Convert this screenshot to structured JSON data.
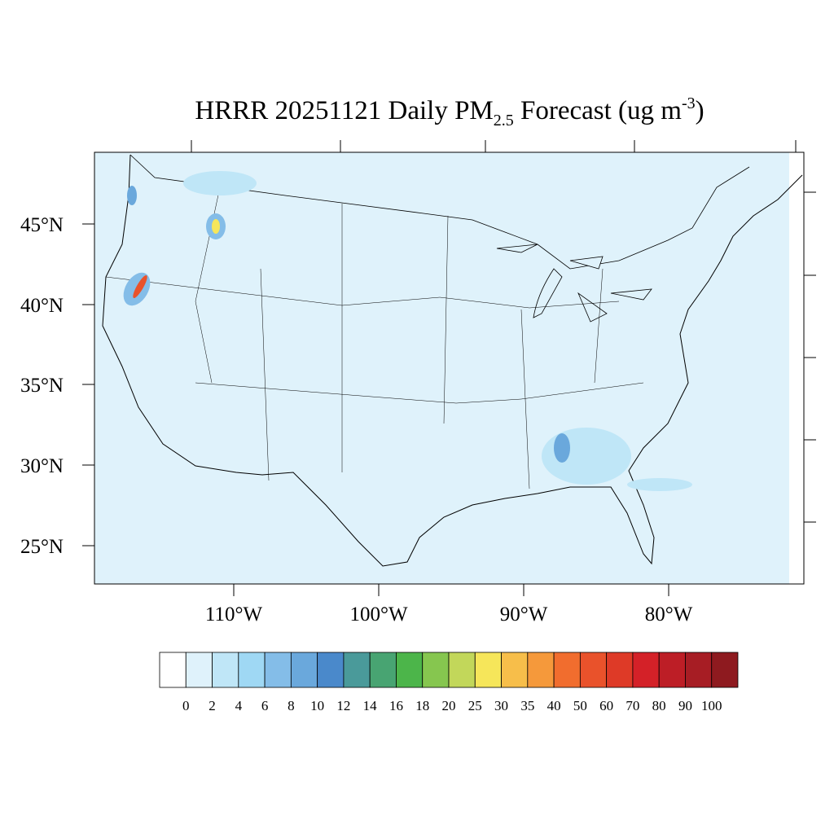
{
  "title": {
    "main": "HRRR 20251121 Daily PM",
    "sub": "2.5",
    "rest": " Forecast (ug m",
    "sup": "-3",
    "end": ")"
  },
  "map": {
    "lat_labels": [
      "45°N",
      "40°N",
      "35°N",
      "30°N",
      "25°N"
    ],
    "lon_labels": [
      "110°W",
      "100°W",
      "90°W",
      "80°W"
    ]
  },
  "colorbar": {
    "colors": [
      "#ffffff",
      "#dff2fb",
      "#bfe6f7",
      "#9fd8f4",
      "#84bde8",
      "#6aa8dc",
      "#4a89cb",
      "#4a9a9a",
      "#48a472",
      "#4cb54a",
      "#86c64f",
      "#c2d75a",
      "#f6e65a",
      "#f7be4a",
      "#f5993b",
      "#f16d2e",
      "#e9522b",
      "#de3a27",
      "#d42128",
      "#bd1e26",
      "#a71d24",
      "#8e1a1f"
    ],
    "labels": [
      "0",
      "2",
      "4",
      "6",
      "8",
      "10",
      "12",
      "14",
      "16",
      "18",
      "20",
      "25",
      "30",
      "35",
      "40",
      "50",
      "60",
      "70",
      "80",
      "90",
      "100"
    ]
  }
}
